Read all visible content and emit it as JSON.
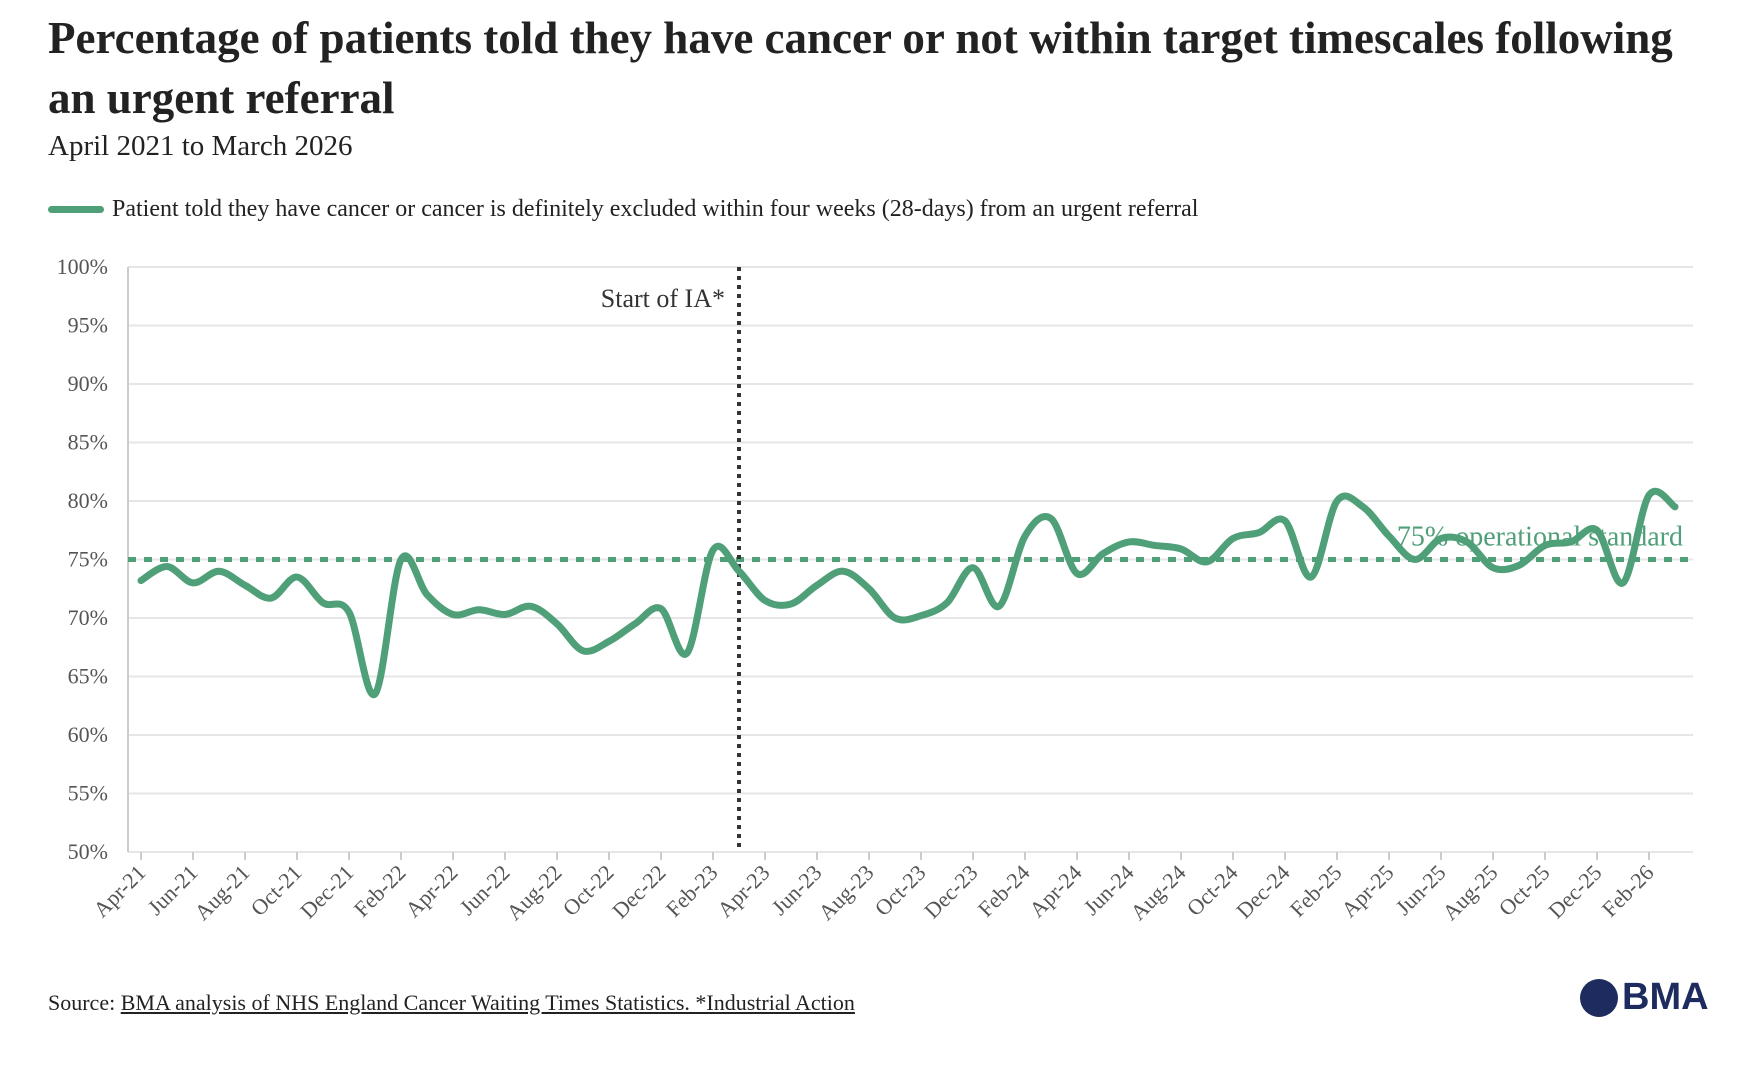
{
  "chart_data": {
    "type": "line",
    "title": "Percentage of patients told they have cancer or not within target timescales following an urgent referral",
    "subtitle": "April 2021 to March 2026",
    "categories": [
      "Apr-21",
      null,
      "Jun-21",
      null,
      "Aug-21",
      null,
      "Oct-21",
      null,
      "Dec-21",
      null,
      "Feb-22",
      null,
      "Apr-22",
      null,
      "Jun-22",
      null,
      "Aug-22",
      null,
      "Oct-22",
      null,
      "Dec-22",
      null,
      "Feb-23",
      null,
      "Apr-23",
      null,
      "Jun-23",
      null,
      "Aug-23",
      null,
      "Oct-23",
      null,
      "Dec-23",
      null,
      "Feb-24",
      null,
      "Apr-24",
      null,
      "Jun-24",
      null,
      "Aug-24",
      null,
      "Oct-24",
      null,
      "Dec-24",
      null,
      "Feb-25",
      null,
      "Apr-25",
      null,
      "Jun-25",
      null,
      "Aug-25",
      null,
      "Oct-25",
      null,
      "Dec-25",
      null,
      "Feb-26",
      null
    ],
    "series": [
      {
        "name": "Patient told they have cancer or cancer is definitely excluded within four weeks (28-days) from an urgent referral",
        "color": "#4f9f78",
        "values": [
          73.2,
          74.4,
          73.0,
          74.0,
          72.8,
          71.7,
          73.5,
          71.3,
          70.5,
          63.5,
          75.0,
          72.0,
          70.3,
          70.7,
          70.3,
          71.0,
          69.5,
          67.2,
          68.0,
          69.5,
          70.8,
          67.0,
          75.8,
          74.0,
          71.5,
          71.2,
          72.8,
          74.0,
          72.5,
          70.0,
          70.2,
          71.3,
          74.3,
          71.0,
          77.0,
          78.5,
          73.8,
          75.5,
          76.5,
          76.2,
          75.9,
          74.8,
          76.8,
          77.3,
          78.3,
          73.5,
          80.0,
          79.5,
          77.0,
          75.0,
          76.8,
          76.5,
          74.3,
          74.5,
          76.2,
          76.5,
          77.5,
          73.0,
          80.5,
          79.5
        ]
      }
    ],
    "ylim": [
      50,
      100
    ],
    "yticks": [
      {
        "value": 50,
        "label": "50%"
      },
      {
        "value": 55,
        "label": "55%"
      },
      {
        "value": 60,
        "label": "60%"
      },
      {
        "value": 65,
        "label": "65%"
      },
      {
        "value": 70,
        "label": "70%"
      },
      {
        "value": 75,
        "label": "75%"
      },
      {
        "value": 80,
        "label": "80%"
      },
      {
        "value": 85,
        "label": "85%"
      },
      {
        "value": 90,
        "label": "90%"
      },
      {
        "value": 95,
        "label": "95%"
      },
      {
        "value": 100,
        "label": "100%"
      }
    ],
    "grid": true,
    "reference_line": {
      "value": 75,
      "label": "75% operational standard"
    },
    "event_line": {
      "label": "Start of IA*",
      "x_index": 23
    },
    "source_prefix": "Source:",
    "source": "BMA analysis of NHS England Cancer Waiting Times Statistics. *Industrial Action",
    "logo": "BMA"
  }
}
